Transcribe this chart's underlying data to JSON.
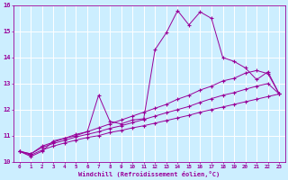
{
  "xlabel": "Windchill (Refroidissement éolien,°C)",
  "xlim": [
    -0.5,
    23.5
  ],
  "ylim": [
    10,
    16
  ],
  "xticks": [
    0,
    1,
    2,
    3,
    4,
    5,
    6,
    7,
    8,
    9,
    10,
    11,
    12,
    13,
    14,
    15,
    16,
    17,
    18,
    19,
    20,
    21,
    22,
    23
  ],
  "yticks": [
    10,
    11,
    12,
    13,
    14,
    15,
    16
  ],
  "background_color": "#cceeff",
  "line_color": "#990099",
  "grid_color": "#ffffff",
  "series": [
    [
      10.4,
      10.2,
      10.4,
      10.8,
      10.9,
      11.05,
      11.15,
      12.55,
      11.55,
      11.45,
      11.6,
      11.65,
      14.3,
      14.95,
      15.8,
      15.25,
      15.75,
      15.5,
      14.0,
      13.85,
      13.6,
      13.15,
      13.45,
      12.6
    ],
    [
      10.4,
      10.3,
      10.6,
      10.75,
      10.9,
      11.0,
      11.15,
      11.3,
      11.45,
      11.6,
      11.75,
      11.9,
      12.05,
      12.2,
      12.4,
      12.55,
      12.75,
      12.9,
      13.1,
      13.2,
      13.4,
      13.5,
      13.38,
      12.6
    ],
    [
      10.4,
      10.3,
      10.55,
      10.7,
      10.82,
      10.95,
      11.05,
      11.15,
      11.28,
      11.38,
      11.5,
      11.62,
      11.75,
      11.88,
      12.0,
      12.12,
      12.28,
      12.42,
      12.55,
      12.65,
      12.78,
      12.9,
      13.0,
      12.6
    ],
    [
      10.4,
      10.25,
      10.45,
      10.6,
      10.72,
      10.83,
      10.93,
      11.0,
      11.12,
      11.2,
      11.3,
      11.38,
      11.48,
      11.58,
      11.68,
      11.78,
      11.9,
      12.0,
      12.1,
      12.2,
      12.3,
      12.4,
      12.5,
      12.6
    ]
  ]
}
